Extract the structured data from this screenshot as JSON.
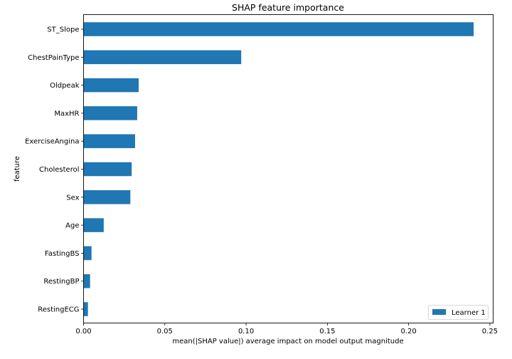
{
  "chart_data": {
    "type": "bar",
    "orientation": "horizontal",
    "title": "SHAP feature importance",
    "xlabel": "mean(|SHAP value|) average impact on model output magnitude",
    "ylabel": "feature",
    "xlim": [
      0,
      0.252
    ],
    "xticks": [
      "0.00",
      "0.05",
      "0.10",
      "0.15",
      "0.20",
      "0.25"
    ],
    "categories": [
      "RestingECG",
      "RestingBP",
      "FastingBS",
      "Age",
      "Sex",
      "Cholesterol",
      "ExerciseAngina",
      "MaxHR",
      "Oldpeak",
      "ChestPainType",
      "ST_Slope"
    ],
    "series": [
      {
        "name": "Learner 1",
        "values": [
          0.0027,
          0.004,
          0.0049,
          0.0124,
          0.0288,
          0.0296,
          0.0317,
          0.033,
          0.0339,
          0.097,
          0.24
        ],
        "color": "#1f77b4"
      }
    ],
    "grid": false,
    "legend": "bottom-right"
  }
}
